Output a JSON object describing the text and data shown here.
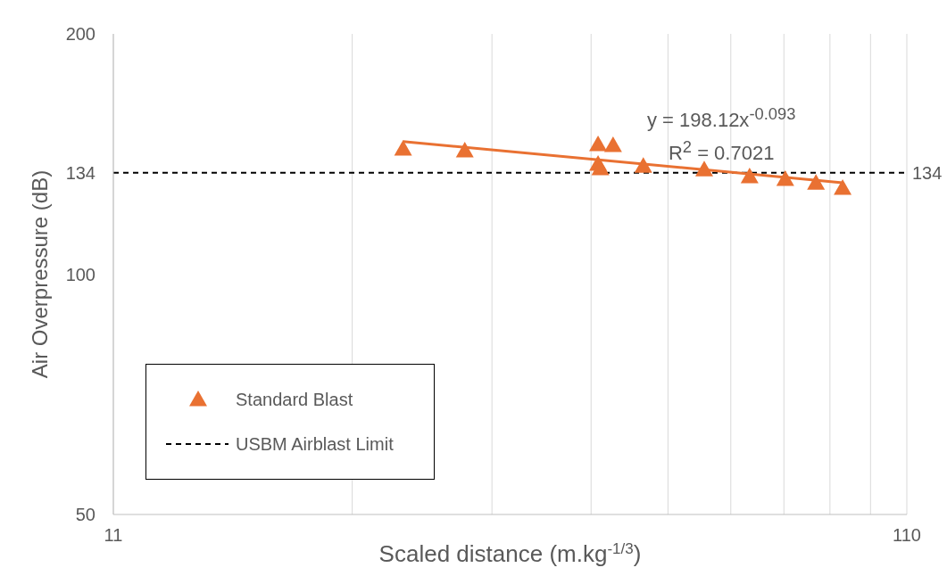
{
  "chart_data": {
    "type": "scatter",
    "xlabel": "Scaled distance (m.kg$^{-1/3}$)",
    "ylabel": "Air Overpressure (dB)",
    "x": [
      25.5,
      30.5,
      44.9,
      46.9,
      44.9,
      45.2,
      51.2,
      61.1,
      69.7,
      77.3,
      84.5,
      91.3
    ],
    "series": [
      {
        "name": "Standard Blast",
        "type": "scatter",
        "color": "#e97132",
        "marker": "triangle",
        "values": [
          143.5,
          142.8,
          145.4,
          145.0,
          137.4,
          135.6,
          136.6,
          135.2,
          132.5,
          131.5,
          130.1,
          128.2
        ]
      },
      {
        "type": "line",
        "color": "#e97132",
        "marker": "none",
        "x": [
          25.5,
          91.3
        ],
        "values": [
          146.6,
          130.2
        ]
      }
    ],
    "log": "xy",
    "xlim": [
      11,
      110
    ],
    "ylim": [
      50,
      200
    ],
    "xticks": [
      11,
      {
        "value": 22,
        "label": null
      },
      {
        "value": 33,
        "label": null
      },
      {
        "value": 44,
        "label": null
      },
      {
        "value": 55,
        "label": null
      },
      {
        "value": 66,
        "label": null
      },
      {
        "value": 77,
        "label": null
      },
      {
        "value": 88,
        "label": null
      },
      {
        "value": 99,
        "label": null
      },
      110
    ],
    "yticks": [
      50,
      100,
      134,
      200
    ],
    "grid": "x",
    "ref_lines": [
      {
        "axis": "y",
        "value": 134,
        "label": "USBM Airblast Limit",
        "color": "#000000",
        "line_style": "dashed"
      }
    ],
    "annotations": [
      "y = 198.12x$^{-0.093}$",
      "R$^{2}$ = 0.7021",
      "134"
    ],
    "legend": "bottom left"
  }
}
